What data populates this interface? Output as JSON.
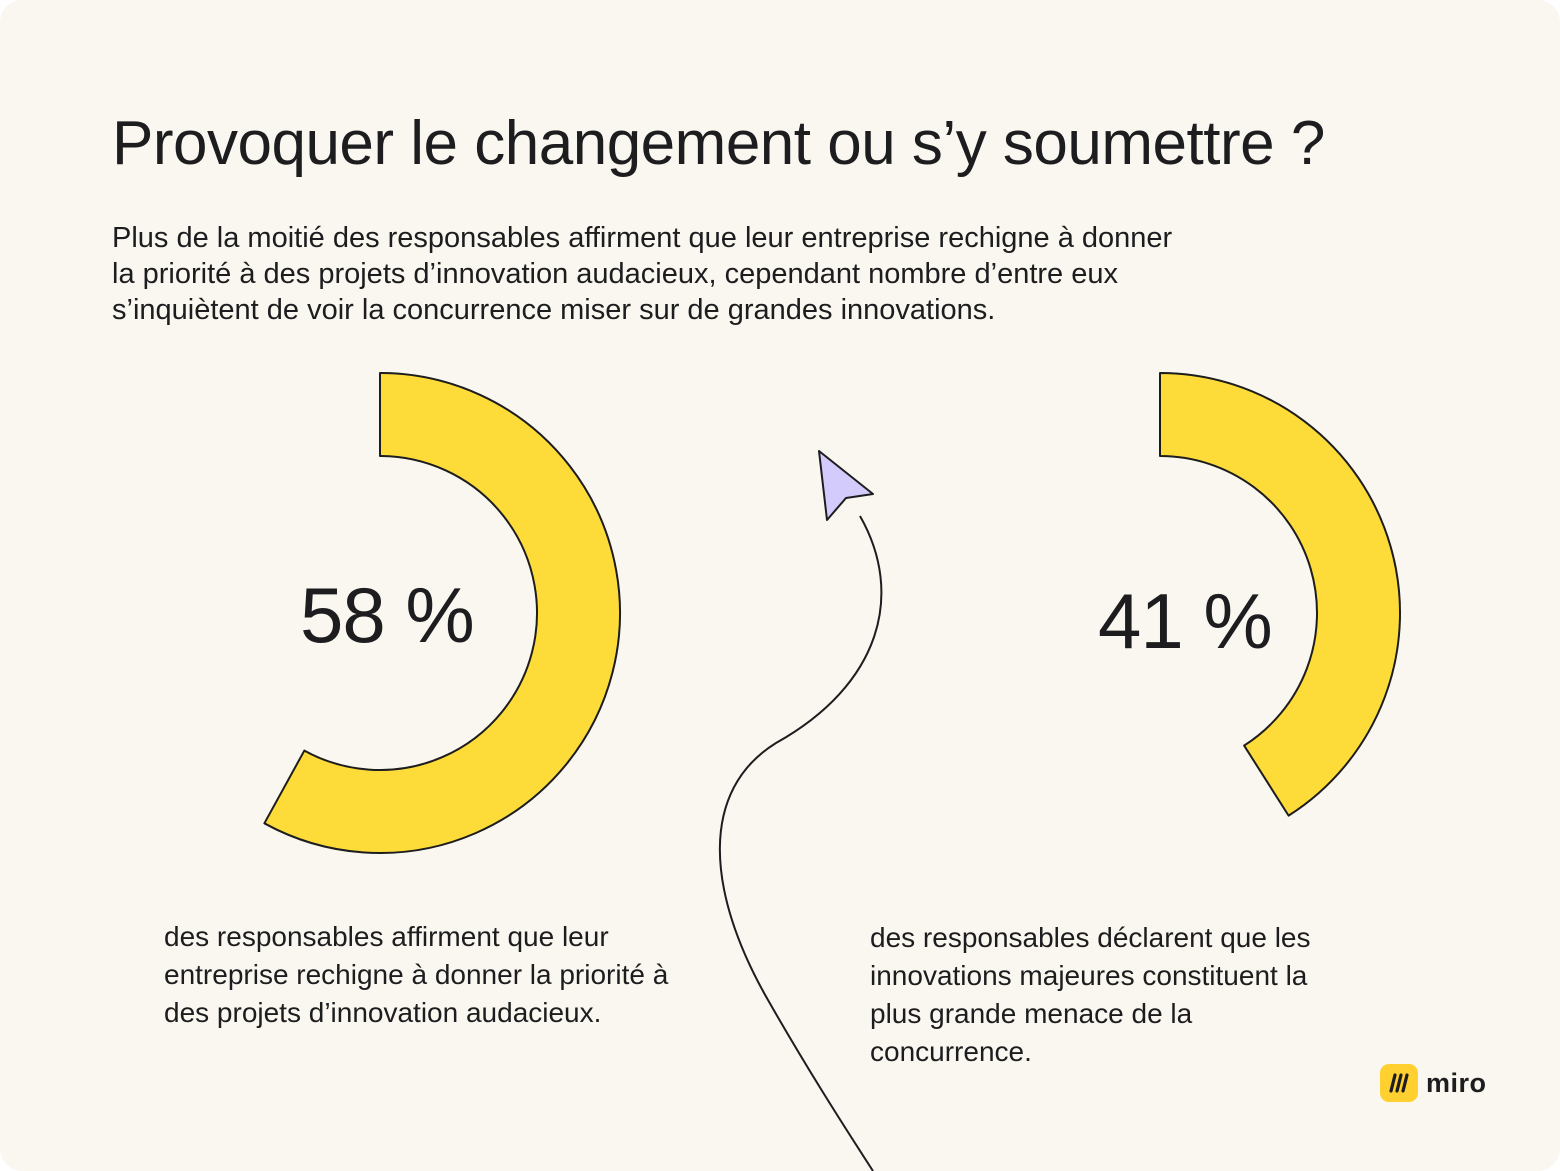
{
  "title": "Provoquer le changement ou s’y soumettre ?",
  "subtitle_lines": [
    "Plus de la moitié des responsables affirment que leur entreprise rechigne à donner",
    "la priorité à des projets d’innovation audacieux, cependant nombre d’entre eux",
    "s’inquiètent de voir la concurrence miser sur de grandes innovations."
  ],
  "chart_data": [
    {
      "type": "pie",
      "value": 58,
      "unit": "%",
      "value_label": "58 %",
      "description_lines": [
        "des responsables affirment que leur",
        "entreprise rechigne à donner la priorité à",
        "des projets d’innovation audacieux."
      ]
    },
    {
      "type": "pie",
      "value": 41,
      "unit": "%",
      "value_label": "41 %",
      "description_lines": [
        "des responsables déclarent que les",
        "innovations majeures constituent la",
        "plus grande menace de la",
        "concurrence."
      ]
    }
  ],
  "colors": {
    "background": "#f9f7ef",
    "ring_fill": "#fddc3a",
    "outline": "#1d1d1f",
    "cursor_fill": "#d3cbfb",
    "logo_yellow": "#ffd02f"
  },
  "icons": {
    "cursor": "pointer-cursor-icon",
    "logo": "miro-logo-icon"
  },
  "logo": {
    "wordmark": "miro"
  }
}
